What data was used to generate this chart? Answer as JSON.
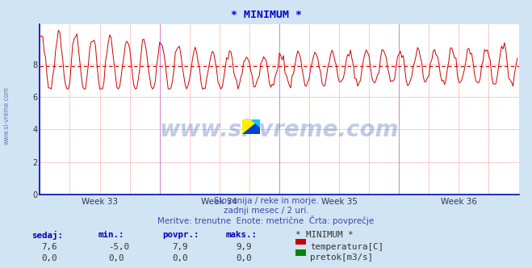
{
  "title": "* MINIMUM *",
  "title_color": "#0000cc",
  "bg_color": "#d0e4f4",
  "plot_bg_color": "#ffffff",
  "grid_color": "#ffb0b0",
  "grid_color_v": "#d0b0ff",
  "line_color": "#cc0000",
  "green_line_color": "#008800",
  "avg_line_color": "#cc0000",
  "avg_value": 7.9,
  "y_min": 0,
  "y_max": 10,
  "y_ticks": [
    0,
    2,
    4,
    6,
    8
  ],
  "x_labels": [
    "Week 33",
    "Week 34",
    "Week 35",
    "Week 36"
  ],
  "subtitle1": "Slovenija / reke in morje.",
  "subtitle2": "zadnji mesec / 2 uri.",
  "subtitle3": "Meritve: trenutne  Enote: metrične  Črta: povprečje",
  "subtitle_color": "#4444aa",
  "watermark": "www.si-vreme.com",
  "watermark_color": "#3355aa",
  "watermark_alpha": 0.3,
  "legend_title": "* MINIMUM *",
  "legend_items": [
    {
      "label": "temperatura[C]",
      "color": "#cc0000"
    },
    {
      "label": "pretok[m3/s]",
      "color": "#008800"
    }
  ],
  "table_headers": [
    "sedaj:",
    "min.:",
    "povpr.:",
    "maks.:"
  ],
  "table_row1": [
    "7,6",
    "-5,0",
    "7,9",
    "9,9"
  ],
  "table_row2": [
    "0,0",
    "0,0",
    "0,0",
    "0,0"
  ],
  "n_points": 336,
  "axis_color": "#0000cc",
  "arrow_color": "#880000"
}
